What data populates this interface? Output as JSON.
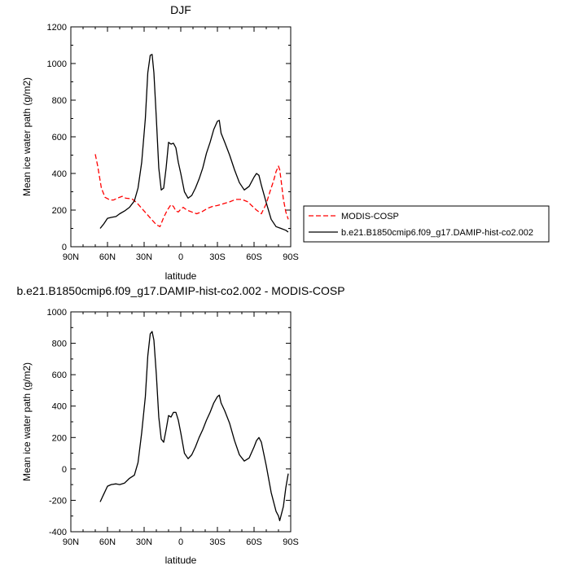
{
  "chart_data": [
    {
      "type": "line",
      "title": "DJF",
      "xlabel": "latitude",
      "ylabel": "Mean ice water path (g/m2)",
      "xlim": [
        90,
        -90
      ],
      "ylim": [
        0,
        1200
      ],
      "x_ticks": [
        {
          "value": 90,
          "label": "90N"
        },
        {
          "value": 60,
          "label": "60N"
        },
        {
          "value": 30,
          "label": "30N"
        },
        {
          "value": 0,
          "label": "0"
        },
        {
          "value": -30,
          "label": "30S"
        },
        {
          "value": -60,
          "label": "60S"
        },
        {
          "value": -90,
          "label": "90S"
        }
      ],
      "y_ticks": [
        0,
        200,
        400,
        600,
        800,
        1000,
        1200
      ],
      "legend_position": "right",
      "series": [
        {
          "name": "MODIS-COSP",
          "color": "#ff0000",
          "dash": "dashed",
          "x": [
            70,
            68,
            65,
            62,
            58,
            55,
            52,
            48,
            45,
            40,
            36,
            32,
            28,
            24,
            20,
            17,
            14,
            11,
            8,
            6,
            4,
            2,
            0,
            -2,
            -5,
            -9,
            -13,
            -17,
            -22,
            -26,
            -30,
            -35,
            -40,
            -45,
            -50,
            -55,
            -58,
            -62,
            -66,
            -70,
            -73,
            -76,
            -78,
            -80,
            -81,
            -82,
            -84,
            -86,
            -88
          ],
          "y": [
            505,
            440,
            320,
            270,
            255,
            255,
            265,
            275,
            265,
            262,
            240,
            210,
            180,
            150,
            120,
            110,
            160,
            200,
            230,
            220,
            195,
            190,
            205,
            215,
            200,
            190,
            180,
            190,
            210,
            220,
            225,
            235,
            245,
            258,
            258,
            245,
            225,
            200,
            180,
            235,
            300,
            360,
            410,
            440,
            420,
            370,
            260,
            190,
            150
          ]
        },
        {
          "name": "b.e21.B1850cmip6.f09_g17.DAMIP-hist-co2.002",
          "color": "#000000",
          "dash": "solid",
          "x": [
            66,
            63,
            60,
            57,
            53,
            50,
            46,
            42,
            38,
            35,
            32,
            29,
            27,
            25,
            23.5,
            22,
            20,
            18,
            16,
            14,
            12,
            10,
            8,
            6,
            4,
            2,
            0,
            -3,
            -6,
            -9,
            -12,
            -15,
            -18,
            -21,
            -24,
            -27,
            -30,
            -31.5,
            -33,
            -36,
            -40,
            -44,
            -48,
            -52,
            -56,
            -60,
            -62,
            -64,
            -66,
            -70,
            -74,
            -78,
            -82,
            -86,
            -88
          ],
          "y": [
            100,
            125,
            155,
            160,
            165,
            180,
            195,
            215,
            250,
            320,
            460,
            700,
            950,
            1045,
            1050,
            950,
            700,
            430,
            310,
            320,
            430,
            570,
            560,
            565,
            540,
            460,
            400,
            300,
            265,
            280,
            320,
            370,
            430,
            510,
            570,
            640,
            685,
            690,
            620,
            570,
            500,
            420,
            350,
            310,
            330,
            380,
            400,
            390,
            335,
            240,
            150,
            110,
            100,
            90,
            80
          ]
        }
      ]
    },
    {
      "type": "line",
      "title": "b.e21.B1850cmip6.f09_g17.DAMIP-hist-co2.002 - MODIS-COSP",
      "xlabel": "latitude",
      "ylabel": "Mean ice water path (g/m2)",
      "xlim": [
        90,
        -90
      ],
      "ylim": [
        -400,
        1000
      ],
      "x_ticks": [
        {
          "value": 90,
          "label": "90N"
        },
        {
          "value": 60,
          "label": "60N"
        },
        {
          "value": 30,
          "label": "30N"
        },
        {
          "value": 0,
          "label": "0"
        },
        {
          "value": -30,
          "label": "30S"
        },
        {
          "value": -60,
          "label": "60S"
        },
        {
          "value": -90,
          "label": "90S"
        }
      ],
      "y_ticks": [
        -400,
        -200,
        0,
        200,
        400,
        600,
        800,
        1000
      ],
      "series": [
        {
          "color": "#000000",
          "dash": "solid",
          "x": [
            66,
            63,
            60,
            57,
            53,
            50,
            46,
            42,
            38,
            35,
            32,
            29,
            27,
            25,
            23.5,
            22,
            20,
            18,
            16,
            14,
            12,
            10,
            8,
            6,
            4,
            2,
            0,
            -3,
            -6,
            -9,
            -12,
            -15,
            -18,
            -21,
            -24,
            -27,
            -30,
            -31.5,
            -33,
            -36,
            -40,
            -44,
            -48,
            -52,
            -56,
            -60,
            -62,
            -64,
            -66,
            -70,
            -74,
            -78,
            -80,
            -81,
            -82,
            -84,
            -86,
            -88
          ],
          "y": [
            -210,
            -160,
            -110,
            -100,
            -95,
            -100,
            -90,
            -60,
            -40,
            40,
            230,
            460,
            720,
            860,
            875,
            820,
            600,
            330,
            190,
            170,
            250,
            340,
            330,
            360,
            360,
            310,
            230,
            100,
            65,
            90,
            140,
            200,
            250,
            310,
            360,
            420,
            460,
            470,
            420,
            370,
            290,
            180,
            90,
            50,
            70,
            140,
            180,
            200,
            170,
            20,
            -150,
            -270,
            -300,
            -330,
            -300,
            -240,
            -120,
            -30
          ]
        }
      ]
    }
  ]
}
